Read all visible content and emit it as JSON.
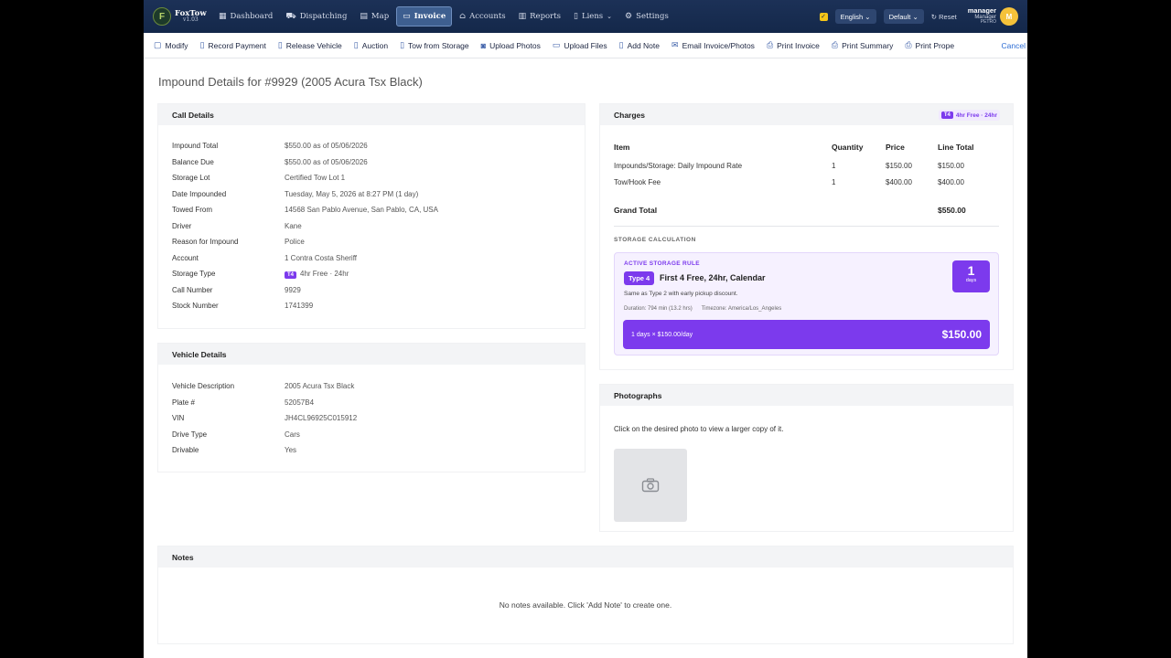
{
  "app": {
    "name": "FoxTow",
    "version": "v1.03"
  },
  "nav": {
    "items": [
      {
        "label": "Dashboard",
        "icon": "dashboard-icon"
      },
      {
        "label": "Dispatching",
        "icon": "truck-icon"
      },
      {
        "label": "Map",
        "icon": "map-icon"
      },
      {
        "label": "Invoice",
        "icon": "invoice-icon",
        "active": true
      },
      {
        "label": "Accounts",
        "icon": "accounts-icon"
      },
      {
        "label": "Reports",
        "icon": "reports-icon"
      },
      {
        "label": "Liens",
        "icon": "liens-icon"
      },
      {
        "label": "Settings",
        "icon": "gear-icon"
      }
    ],
    "language": "English",
    "theme": "Default",
    "reset": "Reset",
    "user": {
      "name": "manager",
      "role": "Manager",
      "org": "PETRO",
      "initial": "M"
    }
  },
  "toolbar": {
    "items": [
      "Modify",
      "Record Payment",
      "Release Vehicle",
      "Auction",
      "Tow from Storage",
      "Upload Photos",
      "Upload Files",
      "Add Note",
      "Email Invoice/Photos",
      "Print Invoice",
      "Print Summary",
      "Print Prope"
    ],
    "cancel": "Cancel"
  },
  "page_title": "Impound Details for #9929 (2005 Acura Tsx Black)",
  "call_details": {
    "title": "Call Details",
    "rows": [
      {
        "label": "Impound Total",
        "value": "$550.00 as of 05/06/2026"
      },
      {
        "label": "Balance Due",
        "value": "$550.00 as of 05/06/2026"
      },
      {
        "label": "Storage Lot",
        "value": "Certified Tow Lot 1"
      },
      {
        "label": "Date Impounded",
        "value": "Tuesday, May 5, 2026 at 8:27 PM (1 day)"
      },
      {
        "label": "Towed From",
        "value": "14568 San Pablo Avenue, San Pablo, CA, USA"
      },
      {
        "label": "Driver",
        "value": "Kane"
      },
      {
        "label": "Reason for Impound",
        "value": "Police"
      },
      {
        "label": "Account",
        "value": "1 Contra Costa Sheriff"
      },
      {
        "label": "Storage Type",
        "value": "4hr Free · 24hr",
        "badge": "T4"
      },
      {
        "label": "Call Number",
        "value": "9929"
      },
      {
        "label": "Stock Number",
        "value": "1741399"
      }
    ]
  },
  "vehicle_details": {
    "title": "Vehicle Details",
    "rows": [
      {
        "label": "Vehicle Description",
        "value": "2005 Acura Tsx Black"
      },
      {
        "label": "Plate #",
        "value": "52057B4"
      },
      {
        "label": "VIN",
        "value": "JH4CL96925C015912"
      },
      {
        "label": "Drive Type",
        "value": "Cars"
      },
      {
        "label": "Drivable",
        "value": "Yes"
      }
    ]
  },
  "charges": {
    "title": "Charges",
    "tag_badge": "T4",
    "tag_text": "4hr Free · 24hr",
    "columns": [
      "Item",
      "Quantity",
      "Price",
      "Line Total"
    ],
    "rows": [
      {
        "item": "Impounds/Storage: Daily Impound Rate",
        "qty": "1",
        "price": "$150.00",
        "total": "$150.00"
      },
      {
        "item": "Tow/Hook Fee",
        "qty": "1",
        "price": "$400.00",
        "total": "$400.00"
      }
    ],
    "grand_total_label": "Grand Total",
    "grand_total": "$550.00"
  },
  "storage_calc": {
    "label": "STORAGE CALCULATION",
    "active_rule_label": "ACTIVE STORAGE RULE",
    "type": "Type 4",
    "rule_name": "First 4 Free, 24hr, Calendar",
    "description": "Same as Type 2 with early pickup discount.",
    "duration": "Duration: 794 min (13.2 hrs)",
    "timezone": "Timezone: America/Los_Angeles",
    "days": "1",
    "days_label": "days",
    "formula": "1 days × $150.00/day",
    "total": "$150.00"
  },
  "photographs": {
    "title": "Photographs",
    "instruction": "Click on the desired photo to view a larger copy of it."
  },
  "notes": {
    "title": "Notes",
    "empty": "No notes available. Click 'Add Note' to create one."
  }
}
